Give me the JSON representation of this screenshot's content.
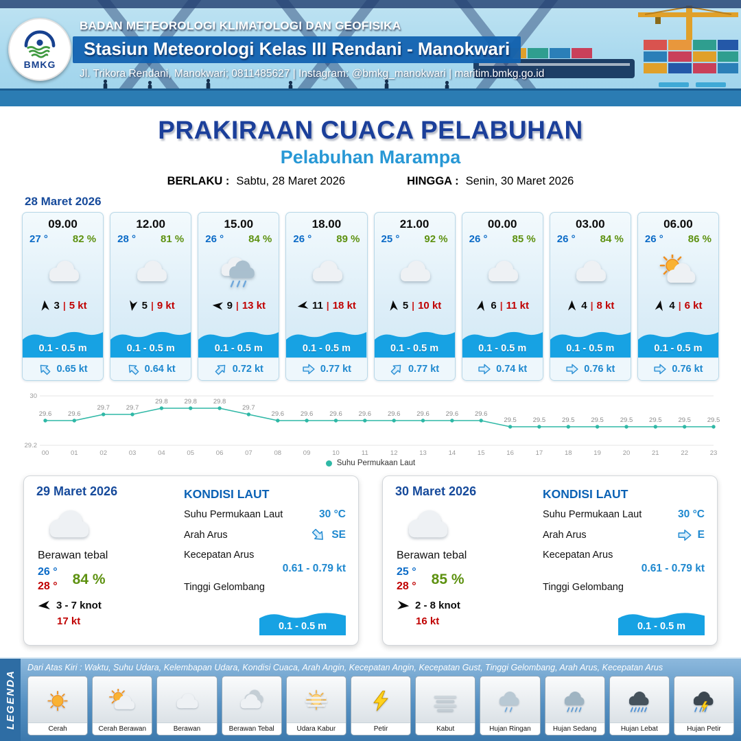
{
  "header": {
    "org": "BADAN METEOROLOGI KLIMATOLOGI DAN GEOFISIKA",
    "station": "Stasiun Meteorologi Kelas III Rendani - Manokwari",
    "contact": "Jl. Trikora Rendani, Manokwari; 0811485627 | Instagram: @bmkg_manokwari | maritim.bmkg.go.id",
    "logo_label": "BMKG"
  },
  "title": {
    "main": "PRAKIRAAN CUACA PELABUHAN",
    "subtitle": "Pelabuhan Marampa",
    "berlaku_label": "BERLAKU :",
    "berlaku_value": "Sabtu, 28 Maret 2026",
    "hingga_label": "HINGGA :",
    "hingga_value": "Senin, 30 Maret 2026"
  },
  "forecast_date": "28 Maret 2026",
  "colors": {
    "wave_blue": "#17a2e3",
    "title_blue": "#1b3f9a",
    "subtitle_blue": "#2898d5",
    "temp_blue": "#0b6bc7",
    "humidity_green": "#5d9110",
    "alert_red": "#c00000",
    "chart_teal": "#2fb8a6"
  },
  "cards": [
    {
      "time": "09.00",
      "temp": "27 °",
      "rh": "82 %",
      "icon": "cloud",
      "wind_deg": -95,
      "wind_val": "3",
      "wind_kt": "5 kt",
      "wave": "0.1 - 0.5 m",
      "cur_deg": -135,
      "cur_kt": "0.65 kt"
    },
    {
      "time": "12.00",
      "temp": "28 °",
      "rh": "81 %",
      "icon": "cloud",
      "wind_deg": 100,
      "wind_val": "5",
      "wind_kt": "9 kt",
      "wave": "0.1 - 0.5 m",
      "cur_deg": -135,
      "cur_kt": "0.64 kt"
    },
    {
      "time": "15.00",
      "temp": "26 °",
      "rh": "84 %",
      "icon": "rain",
      "wind_deg": 185,
      "wind_val": "9",
      "wind_kt": "13 kt",
      "wave": "0.1 - 0.5 m",
      "cur_deg": -45,
      "cur_kt": "0.72 kt"
    },
    {
      "time": "18.00",
      "temp": "26 °",
      "rh": "89 %",
      "icon": "cloud",
      "wind_deg": 170,
      "wind_val": "11",
      "wind_kt": "18 kt",
      "wave": "0.1 - 0.5 m",
      "cur_deg": 0,
      "cur_kt": "0.77 kt"
    },
    {
      "time": "21.00",
      "temp": "25 °",
      "rh": "92 %",
      "icon": "cloud",
      "wind_deg": -95,
      "wind_val": "5",
      "wind_kt": "10 kt",
      "wave": "0.1 - 0.5 m",
      "cur_deg": -45,
      "cur_kt": "0.77 kt"
    },
    {
      "time": "00.00",
      "temp": "26 °",
      "rh": "85 %",
      "icon": "cloud",
      "wind_deg": -80,
      "wind_val": "6",
      "wind_kt": "11 kt",
      "wave": "0.1 - 0.5 m",
      "cur_deg": 0,
      "cur_kt": "0.74 kt"
    },
    {
      "time": "03.00",
      "temp": "26 °",
      "rh": "84 %",
      "icon": "cloud",
      "wind_deg": -90,
      "wind_val": "4",
      "wind_kt": "8 kt",
      "wave": "0.1 - 0.5 m",
      "cur_deg": 0,
      "cur_kt": "0.76 kt"
    },
    {
      "time": "06.00",
      "temp": "26 °",
      "rh": "86 %",
      "icon": "sun-cloud",
      "wind_deg": -80,
      "wind_val": "4",
      "wind_kt": "6 kt",
      "wave": "0.1 - 0.5 m",
      "cur_deg": 0,
      "cur_kt": "0.76 kt"
    }
  ],
  "chart_data": {
    "type": "line",
    "title": "",
    "series_name": "Suhu Permukaan Laut",
    "x": [
      "00",
      "01",
      "02",
      "03",
      "04",
      "05",
      "06",
      "07",
      "08",
      "09",
      "10",
      "11",
      "12",
      "13",
      "14",
      "15",
      "16",
      "17",
      "18",
      "19",
      "20",
      "21",
      "22",
      "23"
    ],
    "values": [
      29.6,
      29.6,
      29.7,
      29.7,
      29.8,
      29.8,
      29.8,
      29.7,
      29.6,
      29.6,
      29.6,
      29.6,
      29.6,
      29.6,
      29.6,
      29.6,
      29.5,
      29.5,
      29.5,
      29.5,
      29.5,
      29.5,
      29.5,
      29.5
    ],
    "ylim": [
      29.2,
      30
    ],
    "yticks": [
      "30",
      "29.2"
    ],
    "xlabel": "",
    "ylabel": "",
    "grid": true,
    "legend_position": "bottom",
    "line_color": "#2fb8a6"
  },
  "sea_labels": {
    "title": "KONDISI LAUT",
    "sst": "Suhu Permukaan Laut",
    "current_dir": "Arah Arus",
    "current_speed": "Kecepatan Arus",
    "wave": "Tinggi Gelombang"
  },
  "day_cards": [
    {
      "date": "29 Maret 2026",
      "icon": "cloud",
      "desc": "Berawan tebal",
      "temp_min": "26 °",
      "temp_max": "28 °",
      "rh": "84 %",
      "wind_deg": 175,
      "wind_range": "3 - 7 knot",
      "gust": "17 kt",
      "sst": "30 °C",
      "current_dir": "SE",
      "current_deg": 45,
      "current_speed": "0.61 - 0.79 kt",
      "wave": "0.1 - 0.5 m"
    },
    {
      "date": "30 Maret 2026",
      "icon": "cloud",
      "desc": "Berawan tebal",
      "temp_min": "25 °",
      "temp_max": "28 °",
      "rh": "85 %",
      "wind_deg": 5,
      "wind_range": "2 - 8 knot",
      "gust": "16 kt",
      "sst": "30 °C",
      "current_dir": "E",
      "current_deg": 0,
      "current_speed": "0.61 - 0.79 kt",
      "wave": "0.1 - 0.5 m"
    }
  ],
  "legend": {
    "title": "LEGENDA",
    "note": "Dari Atas Kiri : Waktu, Suhu Udara, Kelembapan Udara, Kondisi Cuaca, Arah Angin, Kecepatan Angin, Kecepatan Gust, Tinggi Gelombang, Arah Arus, Kecepatan Arus",
    "items": [
      {
        "label": "Cerah",
        "icon": "sun"
      },
      {
        "label": "Cerah Berawan",
        "icon": "sun-cloud"
      },
      {
        "label": "Berawan",
        "icon": "cloud"
      },
      {
        "label": "Berawan Tebal",
        "icon": "cloud-thick"
      },
      {
        "label": "Udara Kabur",
        "icon": "haze"
      },
      {
        "label": "Petir",
        "icon": "lightning"
      },
      {
        "label": "Kabut",
        "icon": "fog"
      },
      {
        "label": "Hujan Ringan",
        "icon": "rain-light"
      },
      {
        "label": "Hujan Sedang",
        "icon": "rain-medium"
      },
      {
        "label": "Hujan Lebat",
        "icon": "rain-heavy"
      },
      {
        "label": "Hujan Petir",
        "icon": "rain-lightning"
      }
    ]
  }
}
